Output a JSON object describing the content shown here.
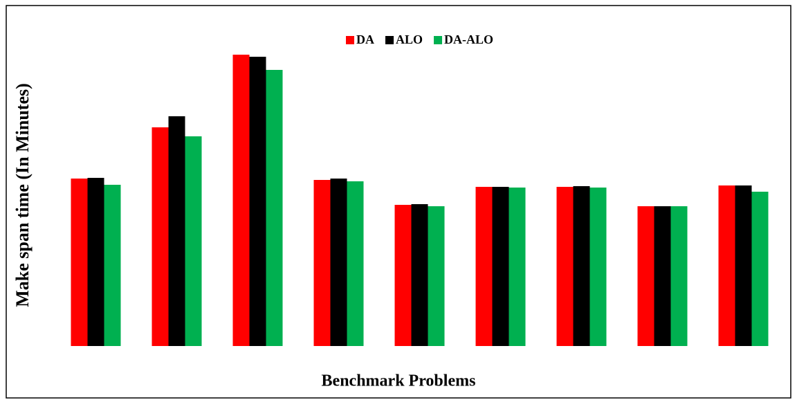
{
  "chart_data": {
    "type": "bar",
    "y_label": "Make span time (In Minutes)",
    "x_label": "Benchmark Problems",
    "categories": [
      null,
      null,
      null,
      null,
      null,
      null,
      null,
      null,
      null
    ],
    "series": [
      {
        "name": "DA",
        "color": "#ff0000",
        "values": [
          242,
          316,
          421,
          240,
          204,
          230,
          230,
          202,
          232
        ]
      },
      {
        "name": "ALO",
        "color": "#000000",
        "values": [
          243,
          332,
          418,
          242,
          205,
          230,
          231,
          202,
          232
        ]
      },
      {
        "name": "DA-ALO",
        "color": "#00b050",
        "values": [
          233,
          303,
          399,
          238,
          202,
          229,
          229,
          202,
          223
        ]
      }
    ],
    "ylim": [
      0,
      430
    ],
    "legend": "top"
  }
}
